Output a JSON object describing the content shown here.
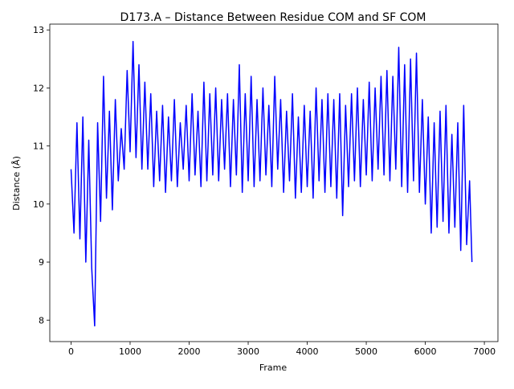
{
  "chart_data": {
    "type": "line",
    "title": "D173.A – Distance Between Residue COM and SF COM",
    "xlabel": "Frame",
    "ylabel": "Distance (Å)",
    "x": [
      0,
      50,
      100,
      150,
      200,
      250,
      300,
      350,
      400,
      450,
      500,
      550,
      600,
      650,
      700,
      750,
      800,
      850,
      900,
      950,
      1000,
      1050,
      1100,
      1150,
      1200,
      1250,
      1300,
      1350,
      1400,
      1450,
      1500,
      1550,
      1600,
      1650,
      1700,
      1750,
      1800,
      1850,
      1900,
      1950,
      2000,
      2050,
      2100,
      2150,
      2200,
      2250,
      2300,
      2350,
      2400,
      2450,
      2500,
      2550,
      2600,
      2650,
      2700,
      2750,
      2800,
      2850,
      2900,
      2950,
      3000,
      3050,
      3100,
      3150,
      3200,
      3250,
      3300,
      3350,
      3400,
      3450,
      3500,
      3550,
      3600,
      3650,
      3700,
      3750,
      3800,
      3850,
      3900,
      3950,
      4000,
      4050,
      4100,
      4150,
      4200,
      4250,
      4300,
      4350,
      4400,
      4450,
      4500,
      4550,
      4600,
      4650,
      4700,
      4750,
      4800,
      4850,
      4900,
      4950,
      5000,
      5050,
      5100,
      5150,
      5200,
      5250,
      5300,
      5350,
      5400,
      5450,
      5500,
      5550,
      5600,
      5650,
      5700,
      5750,
      5800,
      5850,
      5900,
      5950,
      6000,
      6050,
      6100,
      6150,
      6200,
      6250,
      6300,
      6350,
      6400,
      6450,
      6500,
      6550,
      6600,
      6650,
      6700,
      6750,
      6790
    ],
    "series": [
      {
        "name": "Distance",
        "color": "#0000ff",
        "values": [
          10.6,
          9.5,
          11.4,
          9.4,
          11.5,
          9.0,
          11.1,
          8.9,
          7.9,
          11.4,
          9.7,
          12.2,
          10.1,
          11.6,
          9.9,
          11.8,
          10.4,
          11.3,
          10.6,
          12.3,
          10.9,
          12.8,
          10.8,
          12.4,
          10.6,
          12.1,
          10.6,
          11.9,
          10.3,
          11.6,
          10.4,
          11.7,
          10.2,
          11.5,
          10.4,
          11.8,
          10.3,
          11.4,
          10.6,
          11.7,
          10.4,
          11.9,
          10.5,
          11.6,
          10.3,
          12.1,
          10.4,
          11.9,
          10.5,
          12.0,
          10.4,
          11.8,
          10.6,
          11.9,
          10.3,
          11.8,
          10.5,
          12.4,
          10.2,
          11.9,
          10.4,
          12.2,
          10.3,
          11.8,
          10.4,
          12.0,
          10.5,
          11.7,
          10.3,
          12.2,
          10.6,
          11.8,
          10.2,
          11.6,
          10.4,
          11.9,
          10.1,
          11.5,
          10.2,
          11.7,
          10.3,
          11.6,
          10.1,
          12.0,
          10.4,
          11.8,
          10.2,
          11.9,
          10.3,
          11.8,
          10.1,
          11.9,
          9.8,
          11.7,
          10.3,
          11.9,
          10.4,
          12.0,
          10.3,
          11.8,
          10.5,
          12.1,
          10.4,
          12.0,
          10.6,
          12.2,
          10.5,
          12.3,
          10.4,
          12.2,
          10.6,
          12.7,
          10.3,
          12.4,
          10.2,
          12.5,
          10.4,
          12.6,
          10.2,
          11.8,
          10.0,
          11.5,
          9.5,
          11.4,
          9.6,
          11.6,
          9.7,
          11.7,
          9.5,
          11.2,
          9.6,
          11.4,
          9.2,
          11.7,
          9.3,
          10.4,
          9.0
        ]
      }
    ],
    "xlim": [
      -360,
      7230
    ],
    "ylim": [
      7.63,
      13.1
    ],
    "xticks": [
      0,
      1000,
      2000,
      3000,
      4000,
      5000,
      6000,
      7000
    ],
    "yticks": [
      8,
      9,
      10,
      11,
      12,
      13
    ],
    "grid": false
  }
}
